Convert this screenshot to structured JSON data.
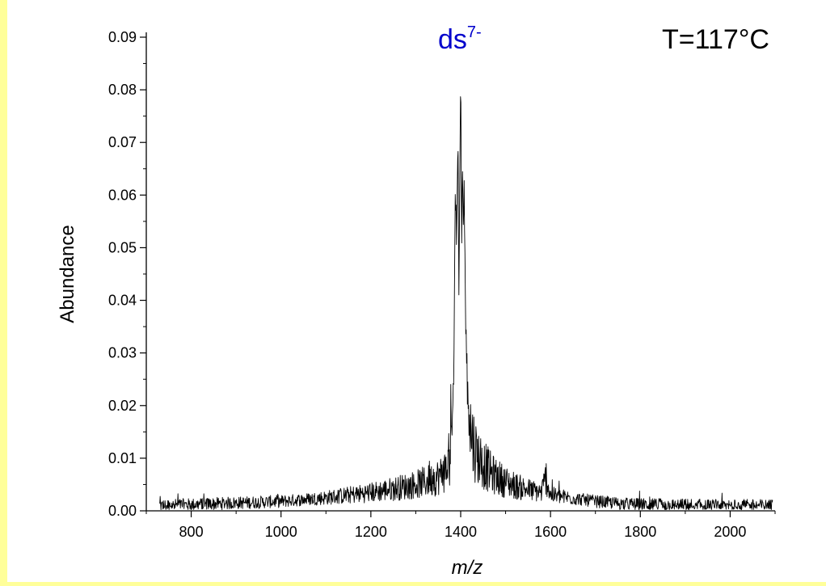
{
  "chart_data": {
    "type": "line",
    "title": "",
    "xlabel": "m/z",
    "ylabel": "Abundance",
    "xlim": [
      700,
      2100
    ],
    "ylim": [
      0,
      0.09
    ],
    "x_ticks": [
      800,
      1000,
      1200,
      1400,
      1600,
      1800,
      2000
    ],
    "y_ticks": [
      0.0,
      0.01,
      0.02,
      0.03,
      0.04,
      0.05,
      0.06,
      0.07,
      0.08,
      0.09
    ],
    "y_tick_labels": [
      "0.00",
      "0.01",
      "0.02",
      "0.03",
      "0.04",
      "0.05",
      "0.06",
      "0.07",
      "0.08",
      "0.09"
    ],
    "x_tick_labels": [
      "800",
      "1000",
      "1200",
      "1400",
      "1600",
      "1800",
      "2000"
    ],
    "grid": false,
    "annotations": [
      {
        "text": "ds",
        "superscript": "7-",
        "x": 1400,
        "y": 0.088
      },
      {
        "text": "T=117°C"
      }
    ],
    "series": [
      {
        "x": [
          730,
          800,
          900,
          1000,
          1100,
          1200,
          1250,
          1300,
          1340,
          1360,
          1375,
          1380,
          1385,
          1388,
          1391,
          1394,
          1396,
          1398,
          1400,
          1402,
          1404,
          1406,
          1408,
          1411,
          1414,
          1418,
          1425,
          1435,
          1450,
          1470,
          1500,
          1530,
          1560,
          1580,
          1590,
          1600,
          1650,
          1700,
          1750,
          1800,
          1900,
          2000,
          2095
        ],
        "values": [
          0.001,
          0.0012,
          0.0015,
          0.0018,
          0.0025,
          0.0035,
          0.0042,
          0.005,
          0.006,
          0.007,
          0.009,
          0.013,
          0.028,
          0.062,
          0.05,
          0.069,
          0.045,
          0.066,
          0.084,
          0.052,
          0.064,
          0.056,
          0.06,
          0.036,
          0.026,
          0.018,
          0.014,
          0.011,
          0.009,
          0.007,
          0.0055,
          0.0045,
          0.0038,
          0.0035,
          0.0065,
          0.003,
          0.0024,
          0.0018,
          0.0014,
          0.0012,
          0.0011,
          0.001,
          0.001
        ]
      }
    ],
    "colors": {
      "background": "#ffff99",
      "line": "#000000",
      "annotation_ion": "#0000cc"
    }
  }
}
